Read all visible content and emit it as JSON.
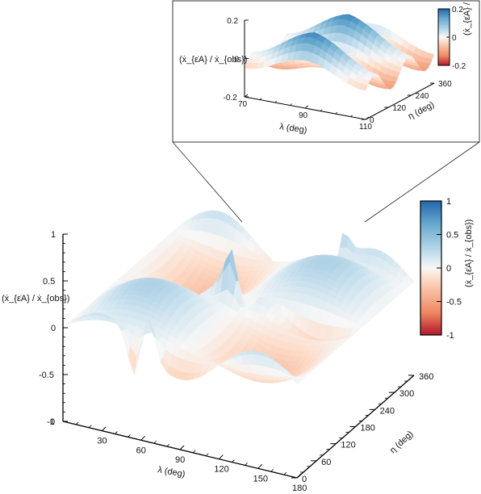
{
  "chart_data": [
    {
      "type": "surface",
      "panel": "main",
      "xlabel": "λ (deg)",
      "ylabel": "η (deg)",
      "zlabel": "(ẋ_{ε̇A} / ẋ_{obs})",
      "xlim": [
        0,
        180
      ],
      "ylim": [
        0,
        360
      ],
      "zlim": [
        -1,
        1
      ],
      "x_ticks": [
        "30",
        "60",
        "90",
        "120",
        "150",
        "180"
      ],
      "x_origin_label": "0",
      "y_ticks": [
        "0",
        "60",
        "120",
        "180",
        "240",
        "300",
        "360"
      ],
      "z_ticks": [
        "1",
        "0.5",
        "0",
        "-0.5",
        "-1"
      ],
      "colorbar": {
        "label": "(ẋ_{ε̇A} / ẋ_{obs})",
        "ticks": [
          "1",
          "0.5",
          "0",
          "-0.5",
          "-1"
        ],
        "range": [
          -1,
          1
        ],
        "colormap": [
          "#b2182b",
          "#ef8a62",
          "#fddbc7",
          "#f7f7f7",
          "#d1e5f0",
          "#67a9cf",
          "#2166ac"
        ]
      },
      "features": [
        {
          "lambda": 60,
          "eta": 0,
          "peak": 1.0,
          "trough": -1.0
        },
        {
          "lambda": 90,
          "eta": 180,
          "peak": 0.85,
          "trough": -0.8
        },
        {
          "lambda": 120,
          "eta": 360,
          "peak": 0.7,
          "trough": -0.9
        }
      ]
    },
    {
      "type": "surface",
      "panel": "inset",
      "xlabel": "λ (deg)",
      "ylabel": "η (deg)",
      "zlabel": "(ẋ_{ε̇A} / ẋ_{obs})",
      "xlim": [
        70,
        110
      ],
      "ylim": [
        0,
        360
      ],
      "zlim": [
        -0.2,
        0.2
      ],
      "x_ticks": [
        "70",
        "90",
        "110"
      ],
      "y_ticks": [
        "0",
        "120",
        "240",
        "360"
      ],
      "z_ticks": [
        "0.2",
        "0",
        "-0.2"
      ],
      "colorbar": {
        "label": "(ẋ_{ε̇A} / ẋ_{obs})",
        "ticks": [
          "0.2",
          "0",
          "-0.2"
        ],
        "range": [
          -0.2,
          0.2
        ]
      }
    }
  ]
}
